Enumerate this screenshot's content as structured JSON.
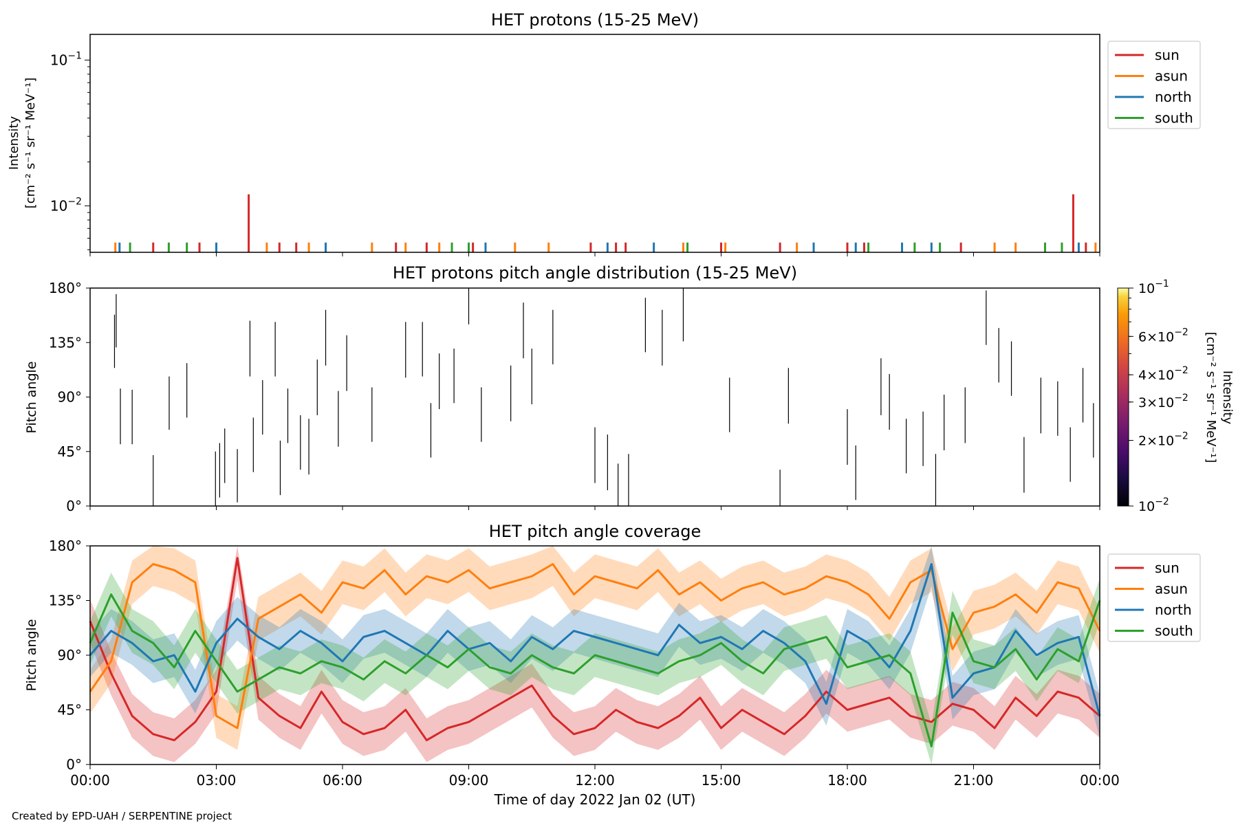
{
  "colors": {
    "sun": "#d62728",
    "asun": "#ff7f0e",
    "north": "#1f77b4",
    "south": "#2ca02c",
    "axes": "#000000",
    "background": "#ffffff"
  },
  "footer": {
    "credit": "Created by EPD-UAH / SERPENTINE project"
  },
  "x_axis": {
    "label": "Time of day 2022 Jan 02 (UT)",
    "ticks": [
      "00:00",
      "03:00",
      "06:00",
      "09:00",
      "12:00",
      "15:00",
      "18:00",
      "21:00",
      "00:00"
    ],
    "range_hours": [
      0,
      24
    ]
  },
  "legend_top": {
    "placement": "right of panel, top",
    "entries": [
      {
        "name": "sun",
        "color": "#d62728"
      },
      {
        "name": "asun",
        "color": "#ff7f0e"
      },
      {
        "name": "north",
        "color": "#1f77b4"
      },
      {
        "name": "south",
        "color": "#2ca02c"
      }
    ]
  },
  "legend_bottom": {
    "placement": "right of panel, top",
    "entries": [
      {
        "name": "sun",
        "color": "#d62728"
      },
      {
        "name": "asun",
        "color": "#ff7f0e"
      },
      {
        "name": "north",
        "color": "#1f77b4"
      },
      {
        "name": "south",
        "color": "#2ca02c"
      }
    ]
  },
  "chart_data": [
    {
      "type": "line",
      "title": "HET protons (15-25 MeV)",
      "xlabel": "",
      "ylabel": [
        "Intensity",
        "[cm⁻² s⁻¹ sr⁻¹ MeV⁻¹]"
      ],
      "y_scale": "log",
      "ylim": [
        0.0048,
        0.15
      ],
      "y_ticks": [
        {
          "value": 0.1,
          "base": "10",
          "exp": "−1"
        },
        {
          "value": 0.01,
          "base": "10",
          "exp": "−2"
        }
      ],
      "baseline": 0.0048,
      "series": [
        {
          "name": "sun",
          "spikes": [
            {
              "x": 1.5,
              "y": 0.0056
            },
            {
              "x": 2.6,
              "y": 0.0056
            },
            {
              "x": 3.77,
              "y": 0.012
            },
            {
              "x": 4.5,
              "y": 0.0056
            },
            {
              "x": 4.9,
              "y": 0.0056
            },
            {
              "x": 7.27,
              "y": 0.0056
            },
            {
              "x": 8.0,
              "y": 0.0056
            },
            {
              "x": 9.1,
              "y": 0.0056
            },
            {
              "x": 11.9,
              "y": 0.0056
            },
            {
              "x": 12.5,
              "y": 0.0056
            },
            {
              "x": 12.73,
              "y": 0.0056
            },
            {
              "x": 15.0,
              "y": 0.0056
            },
            {
              "x": 16.4,
              "y": 0.0056
            },
            {
              "x": 18.0,
              "y": 0.0056
            },
            {
              "x": 18.4,
              "y": 0.0056
            },
            {
              "x": 20.7,
              "y": 0.0056
            },
            {
              "x": 23.37,
              "y": 0.012
            },
            {
              "x": 23.67,
              "y": 0.0056
            }
          ]
        },
        {
          "name": "asun",
          "spikes": [
            {
              "x": 0.6,
              "y": 0.0056
            },
            {
              "x": 4.2,
              "y": 0.0056
            },
            {
              "x": 5.2,
              "y": 0.0056
            },
            {
              "x": 6.7,
              "y": 0.0056
            },
            {
              "x": 7.5,
              "y": 0.0056
            },
            {
              "x": 8.3,
              "y": 0.0056
            },
            {
              "x": 10.1,
              "y": 0.0056
            },
            {
              "x": 10.9,
              "y": 0.0056
            },
            {
              "x": 14.1,
              "y": 0.0056
            },
            {
              "x": 15.1,
              "y": 0.0056
            },
            {
              "x": 16.8,
              "y": 0.0056
            },
            {
              "x": 21.5,
              "y": 0.0056
            },
            {
              "x": 22.0,
              "y": 0.0056
            },
            {
              "x": 23.9,
              "y": 0.0056
            }
          ]
        },
        {
          "name": "north",
          "spikes": [
            {
              "x": 0.7,
              "y": 0.0056
            },
            {
              "x": 3.0,
              "y": 0.0056
            },
            {
              "x": 5.6,
              "y": 0.0056
            },
            {
              "x": 9.4,
              "y": 0.0056
            },
            {
              "x": 12.3,
              "y": 0.0056
            },
            {
              "x": 13.4,
              "y": 0.0056
            },
            {
              "x": 17.2,
              "y": 0.0056
            },
            {
              "x": 18.2,
              "y": 0.0056
            },
            {
              "x": 19.3,
              "y": 0.0056
            },
            {
              "x": 20.0,
              "y": 0.0056
            },
            {
              "x": 23.5,
              "y": 0.0056
            }
          ]
        },
        {
          "name": "south",
          "spikes": [
            {
              "x": 0.95,
              "y": 0.0056
            },
            {
              "x": 1.87,
              "y": 0.0056
            },
            {
              "x": 2.3,
              "y": 0.0056
            },
            {
              "x": 8.6,
              "y": 0.0056
            },
            {
              "x": 9.0,
              "y": 0.0056
            },
            {
              "x": 14.2,
              "y": 0.0056
            },
            {
              "x": 18.5,
              "y": 0.0056
            },
            {
              "x": 19.6,
              "y": 0.0056
            },
            {
              "x": 20.2,
              "y": 0.0056
            },
            {
              "x": 22.7,
              "y": 0.0056
            },
            {
              "x": 23.1,
              "y": 0.0056
            }
          ]
        }
      ]
    },
    {
      "type": "heatmap",
      "title": "HET protons pitch angle distribution (15-25 MeV)",
      "xlabel": "",
      "ylabel": "Pitch angle",
      "ylim": [
        0,
        180
      ],
      "y_ticks": [
        "0°",
        "45°",
        "90°",
        "135°",
        "180°"
      ],
      "colorbar": {
        "label": [
          "Intensity",
          "[cm⁻² s⁻¹ sr⁻¹ MeV⁻¹]"
        ],
        "scale": "log",
        "range": [
          0.01,
          0.1
        ],
        "ticks": [
          {
            "value": 0.1,
            "mant": "",
            "base": "10",
            "exp": "−1"
          },
          {
            "value": 0.06,
            "mant": "6×",
            "base": "10",
            "exp": "−2"
          },
          {
            "value": 0.04,
            "mant": "4×",
            "base": "10",
            "exp": "−2"
          },
          {
            "value": 0.03,
            "mant": "3×",
            "base": "10",
            "exp": "−2"
          },
          {
            "value": 0.02,
            "mant": "2×",
            "base": "10",
            "exp": "−2"
          },
          {
            "value": 0.01,
            "mant": "",
            "base": "10",
            "exp": "−2"
          }
        ],
        "colormap": "inferno"
      },
      "segments": [
        {
          "x": 0.58,
          "y0": 114,
          "y1": 158
        },
        {
          "x": 0.62,
          "y0": 131,
          "y1": 175
        },
        {
          "x": 0.72,
          "y0": 51,
          "y1": 97
        },
        {
          "x": 1.0,
          "y0": 51,
          "y1": 96
        },
        {
          "x": 1.5,
          "y0": 0,
          "y1": 42
        },
        {
          "x": 1.88,
          "y0": 63,
          "y1": 107
        },
        {
          "x": 2.3,
          "y0": 73,
          "y1": 118
        },
        {
          "x": 2.98,
          "y0": 0,
          "y1": 45
        },
        {
          "x": 3.08,
          "y0": 7,
          "y1": 52
        },
        {
          "x": 3.2,
          "y0": 19,
          "y1": 64
        },
        {
          "x": 3.5,
          "y0": 3,
          "y1": 47
        },
        {
          "x": 3.8,
          "y0": 107,
          "y1": 153
        },
        {
          "x": 3.88,
          "y0": 28,
          "y1": 73
        },
        {
          "x": 4.1,
          "y0": 59,
          "y1": 104
        },
        {
          "x": 4.4,
          "y0": 107,
          "y1": 152
        },
        {
          "x": 4.52,
          "y0": 9,
          "y1": 54
        },
        {
          "x": 4.7,
          "y0": 52,
          "y1": 97
        },
        {
          "x": 5.0,
          "y0": 30,
          "y1": 75
        },
        {
          "x": 5.2,
          "y0": 26,
          "y1": 72
        },
        {
          "x": 5.4,
          "y0": 75,
          "y1": 121
        },
        {
          "x": 5.6,
          "y0": 116,
          "y1": 162
        },
        {
          "x": 5.9,
          "y0": 49,
          "y1": 95
        },
        {
          "x": 6.1,
          "y0": 95,
          "y1": 141
        },
        {
          "x": 6.7,
          "y0": 53,
          "y1": 98
        },
        {
          "x": 7.5,
          "y0": 106,
          "y1": 152
        },
        {
          "x": 7.9,
          "y0": 107,
          "y1": 152
        },
        {
          "x": 8.1,
          "y0": 40,
          "y1": 85
        },
        {
          "x": 8.3,
          "y0": 80,
          "y1": 126
        },
        {
          "x": 8.65,
          "y0": 85,
          "y1": 130
        },
        {
          "x": 9.0,
          "y0": 150,
          "y1": 180
        },
        {
          "x": 9.3,
          "y0": 53,
          "y1": 98
        },
        {
          "x": 10.0,
          "y0": 70,
          "y1": 116
        },
        {
          "x": 10.3,
          "y0": 122,
          "y1": 168
        },
        {
          "x": 10.5,
          "y0": 84,
          "y1": 130
        },
        {
          "x": 11.0,
          "y0": 117,
          "y1": 162
        },
        {
          "x": 12.0,
          "y0": 19,
          "y1": 65
        },
        {
          "x": 12.3,
          "y0": 13,
          "y1": 59
        },
        {
          "x": 12.55,
          "y0": 0,
          "y1": 35
        },
        {
          "x": 12.8,
          "y0": 0,
          "y1": 43
        },
        {
          "x": 13.2,
          "y0": 127,
          "y1": 172
        },
        {
          "x": 13.6,
          "y0": 116,
          "y1": 162
        },
        {
          "x": 14.1,
          "y0": 136,
          "y1": 180
        },
        {
          "x": 15.2,
          "y0": 61,
          "y1": 106
        },
        {
          "x": 16.4,
          "y0": 0,
          "y1": 30
        },
        {
          "x": 16.6,
          "y0": 68,
          "y1": 114
        },
        {
          "x": 18.0,
          "y0": 34,
          "y1": 80
        },
        {
          "x": 18.2,
          "y0": 5,
          "y1": 50
        },
        {
          "x": 18.8,
          "y0": 75,
          "y1": 122
        },
        {
          "x": 19.0,
          "y0": 63,
          "y1": 109
        },
        {
          "x": 19.4,
          "y0": 27,
          "y1": 72
        },
        {
          "x": 19.8,
          "y0": 33,
          "y1": 78
        },
        {
          "x": 20.1,
          "y0": 0,
          "y1": 43
        },
        {
          "x": 20.3,
          "y0": 46,
          "y1": 92
        },
        {
          "x": 20.8,
          "y0": 52,
          "y1": 98
        },
        {
          "x": 21.3,
          "y0": 133,
          "y1": 178
        },
        {
          "x": 21.6,
          "y0": 102,
          "y1": 147
        },
        {
          "x": 21.9,
          "y0": 91,
          "y1": 136
        },
        {
          "x": 22.2,
          "y0": 11,
          "y1": 57
        },
        {
          "x": 22.6,
          "y0": 60,
          "y1": 106
        },
        {
          "x": 23.0,
          "y0": 58,
          "y1": 103
        },
        {
          "x": 23.3,
          "y0": 20,
          "y1": 65
        },
        {
          "x": 23.6,
          "y0": 69,
          "y1": 114
        },
        {
          "x": 23.85,
          "y0": 40,
          "y1": 85
        }
      ]
    },
    {
      "type": "line",
      "title": "HET pitch angle coverage",
      "xlabel": "Time of day 2022 Jan 02 (UT)",
      "ylabel": "Pitch angle",
      "ylim": [
        0,
        180
      ],
      "y_ticks": [
        "0°",
        "45°",
        "90°",
        "135°",
        "180°"
      ],
      "sample_interval_hours": 0.5,
      "band_halfwidth_deg": 18,
      "series": [
        {
          "name": "sun",
          "values": [
            118,
            75,
            40,
            25,
            20,
            35,
            60,
            170,
            55,
            40,
            30,
            60,
            35,
            25,
            30,
            45,
            20,
            30,
            35,
            45,
            55,
            65,
            40,
            25,
            30,
            45,
            35,
            30,
            40,
            55,
            30,
            45,
            35,
            25,
            40,
            60,
            45,
            50,
            55,
            40,
            35,
            50,
            45,
            30,
            55,
            40,
            60,
            55,
            40
          ]
        },
        {
          "name": "asun",
          "values": [
            60,
            85,
            150,
            165,
            160,
            150,
            40,
            30,
            120,
            130,
            140,
            125,
            150,
            145,
            160,
            140,
            155,
            150,
            160,
            145,
            150,
            155,
            165,
            140,
            155,
            150,
            145,
            160,
            140,
            150,
            135,
            145,
            150,
            140,
            145,
            155,
            150,
            140,
            120,
            150,
            160,
            95,
            125,
            130,
            140,
            125,
            150,
            145,
            110
          ]
        },
        {
          "name": "north",
          "values": [
            90,
            110,
            100,
            85,
            90,
            60,
            100,
            120,
            105,
            95,
            110,
            100,
            85,
            105,
            110,
            100,
            90,
            110,
            95,
            100,
            85,
            105,
            95,
            110,
            105,
            100,
            95,
            90,
            115,
            100,
            105,
            95,
            110,
            100,
            85,
            50,
            110,
            100,
            80,
            110,
            165,
            55,
            75,
            80,
            110,
            90,
            100,
            105,
            40
          ]
        },
        {
          "name": "south",
          "values": [
            100,
            140,
            110,
            100,
            80,
            110,
            85,
            60,
            70,
            80,
            75,
            85,
            80,
            70,
            85,
            75,
            90,
            80,
            95,
            80,
            75,
            90,
            80,
            75,
            90,
            85,
            80,
            75,
            85,
            90,
            100,
            85,
            75,
            95,
            100,
            105,
            80,
            85,
            90,
            75,
            15,
            125,
            85,
            80,
            95,
            70,
            95,
            85,
            135
          ]
        }
      ]
    }
  ]
}
